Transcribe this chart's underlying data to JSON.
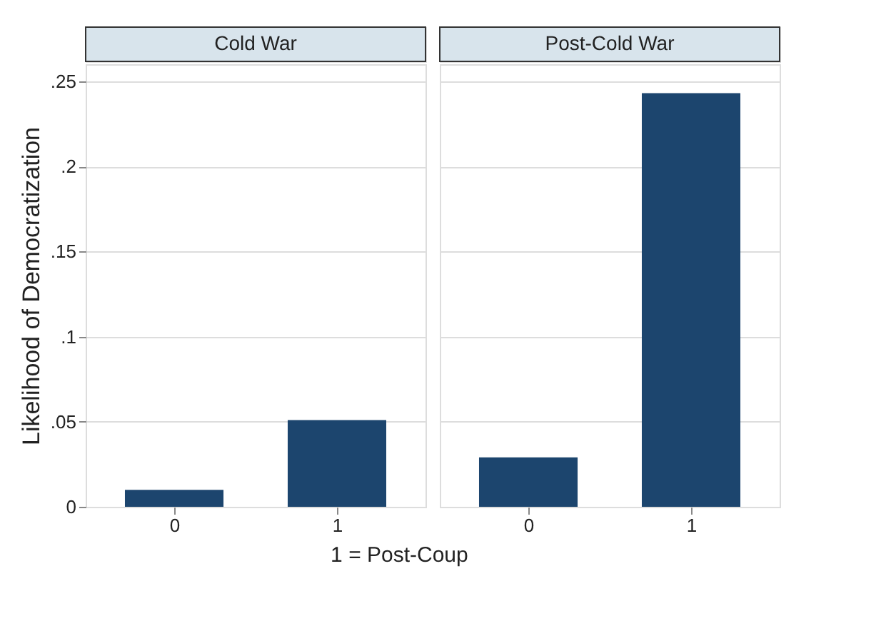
{
  "chart_data": [
    {
      "type": "bar",
      "title": "Cold War",
      "ylabel": "Likelihood of Democratization",
      "xlabel": "1 = Post-Coup",
      "categories": [
        "0",
        "1"
      ],
      "values": [
        0.01,
        0.051
      ],
      "color": "#1c456e",
      "ylim": [
        0,
        0.26
      ],
      "yticks": [
        0,
        {
          "value": 0.05,
          "label": ".05"
        },
        {
          "value": 0.1,
          "label": ".1"
        },
        {
          "value": 0.15,
          "label": ".15"
        },
        {
          "value": 0.2,
          "label": ".2"
        },
        {
          "value": 0.25,
          "label": ".25"
        }
      ],
      "grid": "y"
    },
    {
      "type": "bar",
      "title": "Post-Cold War",
      "categories": [
        "0",
        "1"
      ],
      "values": [
        0.029,
        0.243
      ],
      "color": "#1c456e",
      "ylim": [
        0,
        0.26
      ],
      "yticks": [
        0,
        0.05,
        0.1,
        0.15,
        0.2,
        0.25
      ],
      "grid": "y",
      "tick_labels": "x"
    }
  ]
}
